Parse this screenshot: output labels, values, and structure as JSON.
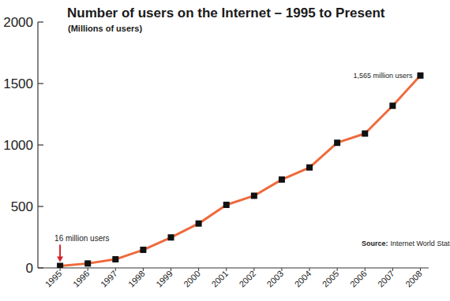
{
  "chart_data": {
    "type": "line",
    "title": "Number of users on the Internet – 1995 to Present",
    "subtitle": "(Millions of users)",
    "x": [
      1995,
      1996,
      1997,
      1998,
      1999,
      2000,
      2001,
      2002,
      2003,
      2004,
      2005,
      2006,
      2007,
      2008
    ],
    "values": [
      16,
      36,
      70,
      147,
      248,
      361,
      513,
      587,
      719,
      817,
      1018,
      1093,
      1319,
      1565
    ],
    "color": "#ee6a3c",
    "marker": "square",
    "xlim": [
      1994.2,
      2008.3
    ],
    "xticks": [
      1995,
      1996,
      1997,
      1998,
      1999,
      2000,
      2001,
      2002,
      2003,
      2004,
      2005,
      2006,
      2007,
      2008
    ],
    "ylim": [
      0,
      2000
    ],
    "yticks": [
      0,
      500,
      1000,
      1500,
      2000
    ],
    "grid": false,
    "annotations": [
      {
        "text": "16 million users",
        "x": 1995,
        "y": 16
      },
      {
        "text": "1,565 million users",
        "x": 2008,
        "y": 1565
      }
    ],
    "source_label": "Source:",
    "source": "Internet World Stats"
  }
}
